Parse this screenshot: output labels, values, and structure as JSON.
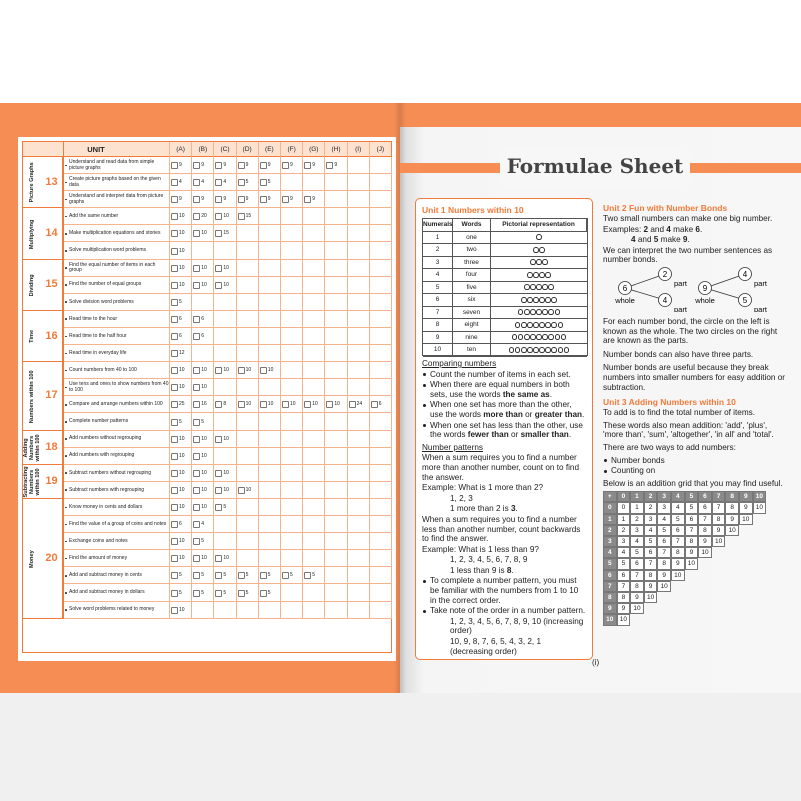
{
  "left_page": {
    "table": {
      "header": {
        "unit": "UNIT",
        "columns": [
          "(A)",
          "(B)",
          "(C)",
          "(D)",
          "(E)",
          "(F)",
          "(G)",
          "(H)",
          "(I)",
          "(J)"
        ]
      },
      "units": [
        {
          "number": "13",
          "name": "Picture Graphs",
          "rows": [
            {
              "skill": "Understand and read data from simple picture graphs",
              "marks": [
                9,
                9,
                9,
                9,
                9,
                9,
                9,
                9
              ]
            },
            {
              "skill": "Create picture graphs based on the given data",
              "marks": [
                4,
                4,
                4,
                5,
                5
              ]
            },
            {
              "skill": "Understand and interpret data from picture graphs",
              "marks": [
                9,
                9,
                9,
                9,
                9,
                9,
                9
              ]
            }
          ]
        },
        {
          "number": "14",
          "name": "Multiplying",
          "rows": [
            {
              "skill": "Add the same number",
              "marks": [
                10,
                20,
                10,
                15
              ]
            },
            {
              "skill": "Make multiplication equations and stories",
              "marks": [
                10,
                10,
                15
              ]
            },
            {
              "skill": "Solve multiplication word problems",
              "marks": [
                10
              ]
            }
          ]
        },
        {
          "number": "15",
          "name": "Dividing",
          "rows": [
            {
              "skill": "Find the equal number of items in each group",
              "marks": [
                10,
                10,
                10
              ]
            },
            {
              "skill": "Find the number of equal groups",
              "marks": [
                10,
                10,
                10
              ]
            },
            {
              "skill": "Solve division word problems",
              "marks": [
                5
              ]
            }
          ]
        },
        {
          "number": "16",
          "name": "Time",
          "rows": [
            {
              "skill": "Read time to the hour",
              "marks": [
                6,
                6
              ]
            },
            {
              "skill": "Read time to the half hour",
              "marks": [
                6,
                6
              ]
            },
            {
              "skill": "Read time in everyday life",
              "marks": [
                12
              ]
            }
          ]
        },
        {
          "number": "17",
          "name": "Numbers within 100",
          "rows": [
            {
              "skill": "Count numbers from 40 to 100",
              "marks": [
                10,
                10,
                10,
                10,
                10
              ]
            },
            {
              "skill": "Use tens and ones to show numbers from 40 to 100",
              "marks": [
                10,
                10
              ]
            },
            {
              "skill": "Compare and arrange numbers within 100",
              "marks": [
                25,
                16,
                8,
                10,
                10,
                10,
                10,
                10,
                24,
                6
              ]
            },
            {
              "skill": "Complete number patterns",
              "marks": [
                5,
                5
              ]
            }
          ]
        },
        {
          "number": "18",
          "name": "Adding Numbers within 100",
          "rows": [
            {
              "skill": "Add numbers without regrouping",
              "marks": [
                10,
                10,
                10
              ]
            },
            {
              "skill": "Add numbers with regrouping",
              "marks": [
                10,
                10
              ]
            }
          ]
        },
        {
          "number": "19",
          "name": "Subtracting Numbers within 100",
          "rows": [
            {
              "skill": "Subtract numbers without regrouping",
              "marks": [
                10,
                10,
                10
              ]
            },
            {
              "skill": "Subtract numbers with regrouping",
              "marks": [
                10,
                10,
                10,
                10
              ]
            }
          ]
        },
        {
          "number": "20",
          "name": "Money",
          "rows": [
            {
              "skill": "Know money in cents and dollars",
              "marks": [
                10,
                10,
                5
              ]
            },
            {
              "skill": "Find the value of a group of coins and notes",
              "marks": [
                6,
                4
              ]
            },
            {
              "skill": "Exchange coins and notes",
              "marks": [
                10,
                5
              ]
            },
            {
              "skill": "Find the amount of money",
              "marks": [
                10,
                10,
                10
              ]
            },
            {
              "skill": "Add and subtract money in cents",
              "marks": [
                5,
                5,
                5,
                5,
                5,
                5,
                5
              ]
            },
            {
              "skill": "Add and subtract money in dollars",
              "marks": [
                5,
                5,
                5,
                5,
                5
              ]
            },
            {
              "skill": "Solve word problems related to money",
              "marks": [
                10
              ]
            }
          ]
        }
      ]
    }
  },
  "right_page": {
    "title": "Formulae Sheet",
    "unit1": {
      "title": "Unit 1  Numbers within 10",
      "table": {
        "header": [
          "Numerals",
          "Words",
          "Pictorial representation"
        ],
        "rows": [
          [
            1,
            "one"
          ],
          [
            2,
            "two"
          ],
          [
            3,
            "three"
          ],
          [
            4,
            "four"
          ],
          [
            5,
            "five"
          ],
          [
            6,
            "six"
          ],
          [
            7,
            "seven"
          ],
          [
            8,
            "eight"
          ],
          [
            9,
            "nine"
          ],
          [
            10,
            "ten"
          ]
        ]
      },
      "notes": [
        [
          "Comparing numbers"
        ],
        [
          "Count the number of items in each set."
        ],
        [
          "When there are equal numbers in both sets, use the words ",
          {
            "bold": "the same as"
          },
          "."
        ],
        [
          "When one set has more than the other, use the words ",
          {
            "bold": "more than"
          },
          " or ",
          {
            "bold": "greater than"
          },
          "."
        ],
        [
          "When one set has less than the other, use the words ",
          {
            "bold": "fewer than"
          },
          " or ",
          {
            "bold": "smaller than"
          },
          "."
        ],
        [
          "Number patterns"
        ],
        [
          "When a sum requires you to find a number more than another number, count on to find the answer."
        ],
        [
          "Example: What is 1 more than 2?"
        ],
        [
          "1, 2, 3"
        ],
        [
          "1 more than 2 is ",
          {
            "bold": "3"
          },
          "."
        ],
        [
          "When a sum requires you to find a number less than another number, count backwards to find the answer."
        ],
        [
          "Example: What is 1 less than 9?"
        ],
        [
          "1, 2, 3, 4, 5, 6, 7, 8, 9"
        ],
        [
          "1 less than 9 is ",
          {
            "bold": "8"
          },
          "."
        ],
        [
          "To complete a number pattern, you must be familiar with the numbers from 1 to 10 in the correct order."
        ],
        [
          "Take note of the order in a number pattern."
        ],
        [
          "1, 2, 3, 4, 5, 6, 7, 8, 9, 10 (increasing order)"
        ],
        [
          "10, 9, 8, 7, 6, 5, 4, 3, 2, 1 (decreasing order)"
        ]
      ]
    },
    "unit2": {
      "title": "Unit 2  Fun with Number Bonds",
      "notes_before": [
        [
          "Two small numbers can make one big number."
        ],
        [
          "Examples: ",
          {
            "bold": "2"
          },
          " and ",
          {
            "bold": "4"
          },
          " make ",
          {
            "bold": "6"
          },
          "."
        ],
        [
          {
            "bold": "4"
          },
          " and ",
          {
            "bold": "5"
          },
          " make ",
          {
            "bold": "9"
          },
          "."
        ],
        [
          "We can interpret the two number sentences as number bonds."
        ]
      ],
      "bonds": [
        {
          "whole": 6,
          "parts": [
            2,
            4
          ]
        },
        {
          "whole": 9,
          "parts": [
            4,
            5
          ]
        }
      ],
      "whole_label": "whole",
      "part_label": "part",
      "notes_after": [
        [
          "For each number bond, the circle on the left is known as the whole. The two circles on the right are known as the parts."
        ],
        [
          "Number bonds can also have three parts."
        ],
        [
          "Number bonds are useful because they break numbers into smaller numbers for easy addition or subtraction."
        ]
      ]
    },
    "unit3": {
      "title": "Unit 3  Adding Numbers within 10",
      "notes": [
        [
          "To add is to find the total number of items."
        ],
        [
          "These words also mean addition: 'add', 'plus', 'more than', 'sum', 'altogether', 'in all' and 'total'."
        ],
        [
          "There are two ways to add numbers:"
        ]
      ],
      "bullets": [
        "Number bonds",
        "Counting on"
      ],
      "closing": [
        "Below is an addition grid that you may find useful."
      ],
      "grid": {
        "header": [
          "+",
          0,
          1,
          2,
          3,
          4,
          5,
          6,
          7,
          8,
          9,
          10
        ],
        "rows": [
          [
            0,
            0,
            1,
            2,
            3,
            4,
            5,
            6,
            7,
            8,
            9,
            10
          ],
          [
            1,
            1,
            2,
            3,
            4,
            5,
            6,
            7,
            8,
            9,
            10
          ],
          [
            2,
            2,
            3,
            4,
            5,
            6,
            7,
            8,
            9,
            10
          ],
          [
            3,
            3,
            4,
            5,
            6,
            7,
            8,
            9,
            10
          ],
          [
            4,
            4,
            5,
            6,
            7,
            8,
            9,
            10
          ],
          [
            5,
            5,
            6,
            7,
            8,
            9,
            10
          ],
          [
            6,
            6,
            7,
            8,
            9,
            10
          ],
          [
            7,
            7,
            8,
            9,
            10
          ],
          [
            8,
            8,
            9,
            10
          ],
          [
            9,
            9,
            10
          ],
          [
            10,
            10
          ]
        ]
      }
    },
    "page_number": "(i)"
  }
}
